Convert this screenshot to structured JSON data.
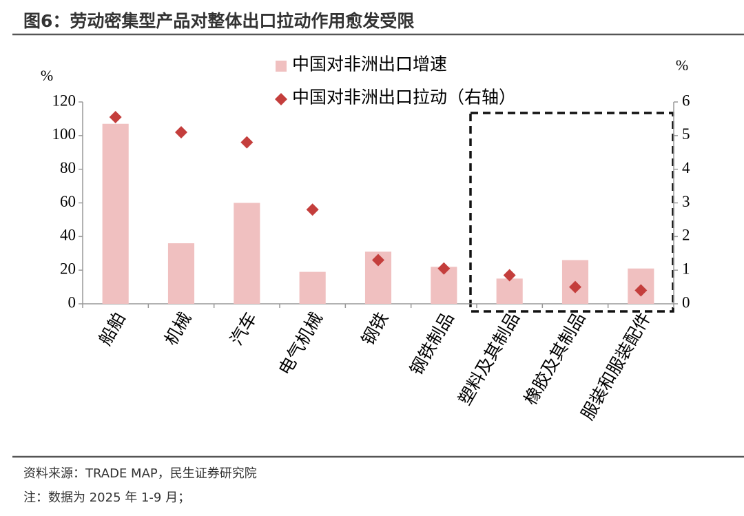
{
  "chart_data": {
    "type": "bar",
    "title": "图6：劳动密集型产品对整体出口拉动作用愈发受限",
    "categories": [
      "船舶",
      "机械",
      "汽车",
      "电气机械",
      "钢铁",
      "钢铁制品",
      "塑料及其制品",
      "橡胶及其制品",
      "服装和服装配件"
    ],
    "series": [
      {
        "name": "中国对非洲出口增速",
        "type": "bar",
        "color": "#f0c0c0",
        "values": [
          107,
          36,
          60,
          19,
          31,
          22,
          15,
          26,
          21
        ]
      },
      {
        "name": "中国对非洲出口拉动（右轴）",
        "type": "scatter",
        "axis": "y2",
        "color": "#c43e3c",
        "values": [
          5.55,
          5.1,
          4.8,
          2.8,
          1.3,
          1.05,
          0.85,
          0.5,
          0.4
        ]
      }
    ],
    "y_unit": "%",
    "y2_unit": "%",
    "ylim": [
      0,
      120
    ],
    "yticks": [
      0,
      20,
      40,
      60,
      80,
      100,
      120
    ],
    "y2lim": [
      0,
      6
    ],
    "y2ticks": [
      0,
      1,
      2,
      3,
      4,
      5,
      6
    ],
    "source": "资料来源：TRADE MAP，民生证券研究院",
    "note": "注：数据为 2025 年 1-9 月；"
  }
}
